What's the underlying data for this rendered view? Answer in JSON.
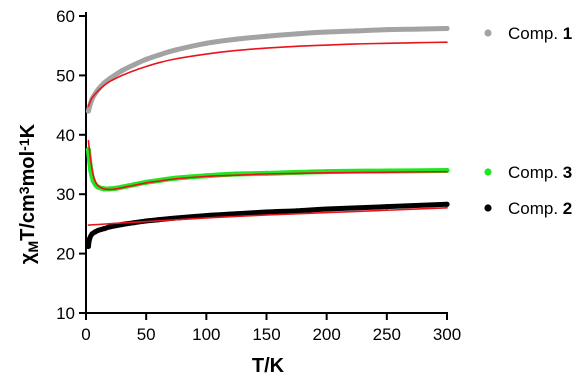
{
  "chart_data": {
    "type": "scatter",
    "xlabel": "T/K",
    "ylabel": {
      "parts": [
        {
          "text": "χ",
          "role": "base"
        },
        {
          "text": "M",
          "role": "sub"
        },
        {
          "text": "T/cm",
          "role": "base"
        },
        {
          "text": "3",
          "role": "sup"
        },
        {
          "text": "mol",
          "role": "base"
        },
        {
          "text": "-1",
          "role": "sup"
        },
        {
          "text": "K",
          "role": "base"
        }
      ]
    },
    "xlim": [
      0,
      300
    ],
    "ylim": [
      10,
      60
    ],
    "xticks": [
      0,
      50,
      100,
      150,
      200,
      250,
      300
    ],
    "yticks": [
      10,
      20,
      30,
      40,
      50,
      60
    ],
    "xtick_labels": [
      "0",
      "50",
      "100",
      "150",
      "200",
      "250",
      "300"
    ],
    "ytick_labels": [
      "10",
      "20",
      "30",
      "40",
      "50",
      "60"
    ],
    "grid": false,
    "legend_position": "right",
    "fit_color": "#e8141c",
    "series": [
      {
        "name": "Comp. 1",
        "label": "Comp.",
        "number": "1",
        "color": "#a3a3a3",
        "x": [
          2,
          5,
          10,
          15,
          20,
          30,
          40,
          50,
          60,
          75,
          100,
          125,
          150,
          175,
          200,
          225,
          250,
          275,
          300
        ],
        "y": [
          44.0,
          46.0,
          47.6,
          48.7,
          49.5,
          50.8,
          51.8,
          52.7,
          53.4,
          54.3,
          55.4,
          56.1,
          56.6,
          57.0,
          57.3,
          57.5,
          57.7,
          57.8,
          57.9
        ],
        "fit_x": [
          2,
          5,
          10,
          15,
          20,
          30,
          40,
          50,
          60,
          75,
          100,
          125,
          150,
          175,
          200,
          225,
          250,
          275,
          300
        ],
        "fit_y": [
          44.8,
          46.2,
          47.4,
          48.3,
          49.0,
          50.0,
          50.8,
          51.5,
          52.1,
          52.8,
          53.6,
          54.2,
          54.6,
          54.9,
          55.1,
          55.3,
          55.4,
          55.5,
          55.6
        ]
      },
      {
        "name": "Comp. 3",
        "label": "Comp.",
        "number": "3",
        "color": "#22e622",
        "x": [
          2,
          4,
          6,
          8,
          10,
          15,
          20,
          25,
          30,
          40,
          50,
          60,
          75,
          100,
          125,
          150,
          200,
          250,
          300
        ],
        "y": [
          37.5,
          34.0,
          32.3,
          31.6,
          31.2,
          30.9,
          30.9,
          31.0,
          31.2,
          31.6,
          32.0,
          32.3,
          32.7,
          33.1,
          33.4,
          33.5,
          33.8,
          33.9,
          34.0
        ],
        "fit_x": [
          2,
          4,
          6,
          8,
          10,
          15,
          20,
          25,
          30,
          40,
          50,
          60,
          75,
          100,
          125,
          150,
          200,
          250,
          300
        ],
        "fit_y": [
          39.0,
          35.5,
          33.2,
          32.0,
          31.4,
          30.9,
          30.8,
          30.9,
          31.1,
          31.5,
          31.9,
          32.2,
          32.6,
          33.0,
          33.2,
          33.4,
          33.6,
          33.7,
          33.8
        ]
      },
      {
        "name": "Comp. 2",
        "label": "Comp.",
        "number": "2",
        "color": "#000000",
        "x": [
          2,
          3,
          5,
          8,
          10,
          15,
          20,
          30,
          40,
          50,
          60,
          75,
          100,
          125,
          150,
          175,
          200,
          250,
          300
        ],
        "y": [
          21.2,
          22.5,
          23.3,
          23.7,
          23.9,
          24.2,
          24.5,
          24.9,
          25.2,
          25.5,
          25.7,
          26.0,
          26.4,
          26.7,
          27.0,
          27.2,
          27.5,
          27.9,
          28.3
        ],
        "fit_x": [
          2,
          10,
          25,
          50,
          75,
          100,
          150,
          200,
          250,
          300
        ],
        "fit_y": [
          24.8,
          24.9,
          25.1,
          25.4,
          25.7,
          26.0,
          26.5,
          26.9,
          27.3,
          27.7
        ]
      }
    ]
  }
}
